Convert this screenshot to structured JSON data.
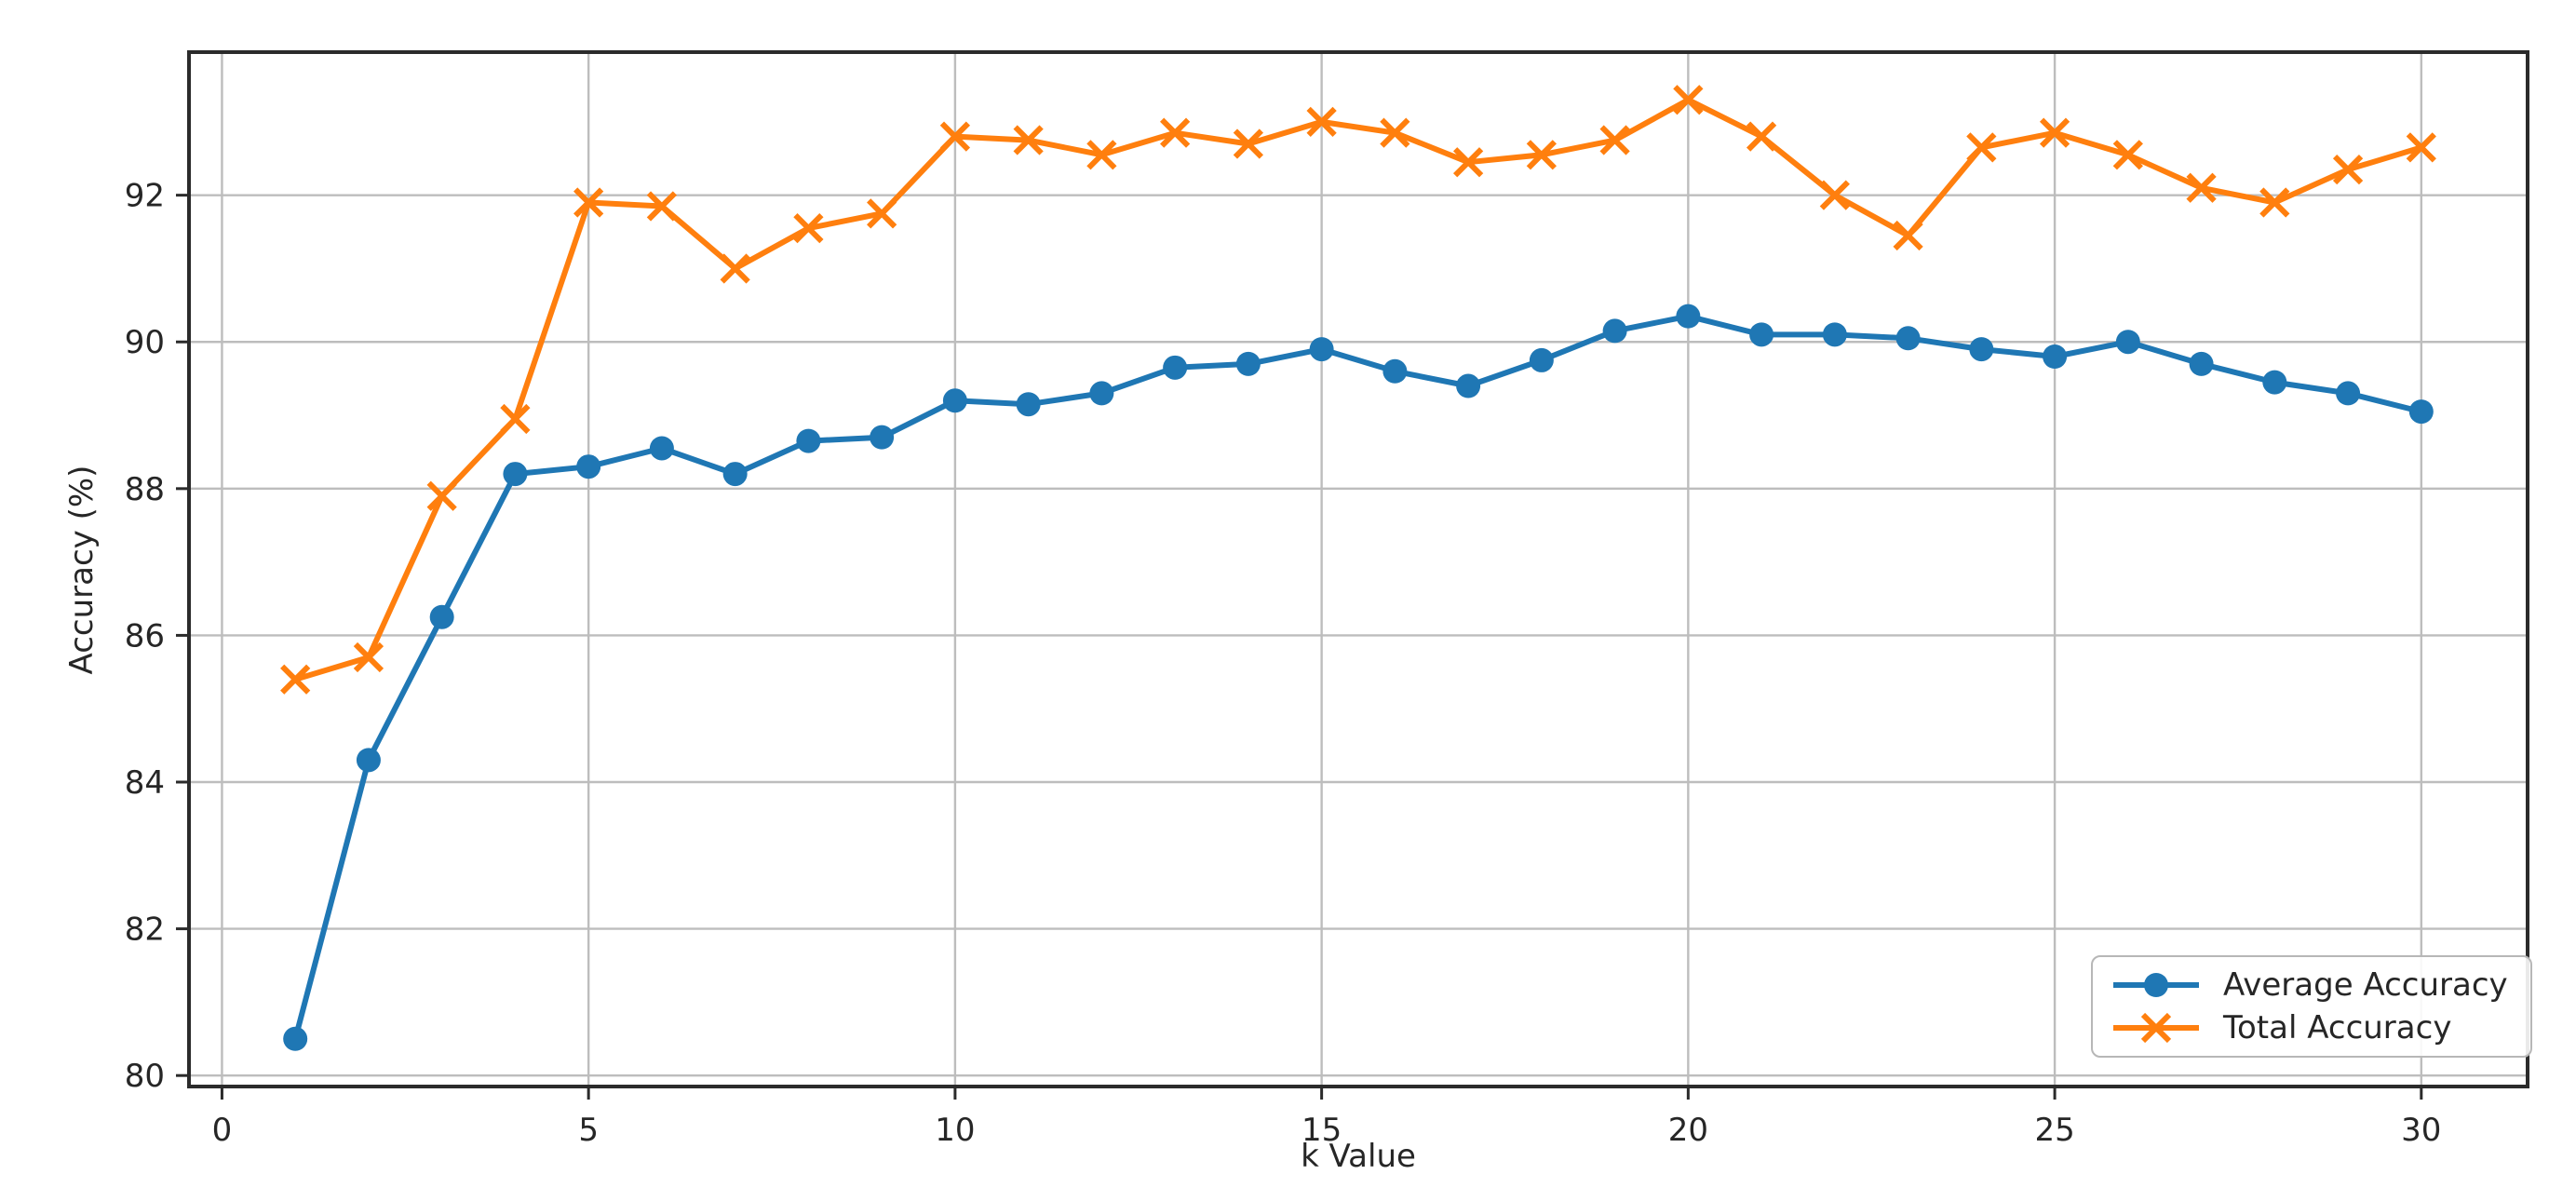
{
  "chart_data": {
    "type": "line",
    "title": "",
    "xlabel": "k Value",
    "ylabel": "Accuracy (%)",
    "x_ticks": [
      0,
      5,
      10,
      15,
      20,
      25,
      30
    ],
    "y_ticks": [
      80,
      82,
      84,
      86,
      88,
      90,
      92
    ],
    "xlim": [
      -0.45,
      31.45
    ],
    "ylim": [
      79.85,
      93.95
    ],
    "grid": true,
    "legend_position": "lower right",
    "x": [
      1,
      2,
      3,
      4,
      5,
      6,
      7,
      8,
      9,
      10,
      11,
      12,
      13,
      14,
      15,
      16,
      17,
      18,
      19,
      20,
      21,
      22,
      23,
      24,
      25,
      26,
      27,
      28,
      29,
      30
    ],
    "series": [
      {
        "name": "Average Accuracy",
        "color": "#1f77b4",
        "marker": "circle",
        "values": [
          80.5,
          84.3,
          86.25,
          88.2,
          88.3,
          88.55,
          88.2,
          88.65,
          88.7,
          89.2,
          89.15,
          89.3,
          89.65,
          89.7,
          89.9,
          89.6,
          89.4,
          89.75,
          90.15,
          90.35,
          90.1,
          90.1,
          90.05,
          89.9,
          89.8,
          90.0,
          89.7,
          89.45,
          89.3,
          89.05
        ]
      },
      {
        "name": "Total Accuracy",
        "color": "#ff7f0e",
        "marker": "x",
        "values": [
          85.4,
          85.7,
          87.9,
          88.95,
          91.9,
          91.85,
          91.0,
          91.55,
          91.75,
          92.8,
          92.75,
          92.55,
          92.85,
          92.7,
          93.0,
          92.85,
          92.45,
          92.55,
          92.75,
          93.3,
          92.8,
          92.0,
          91.45,
          92.65,
          92.85,
          92.55,
          92.1,
          91.9,
          92.35,
          92.65
        ]
      }
    ],
    "colors": {
      "grid": "#bdbdbd",
      "spine": "#2b2b2b",
      "tick_text": "#262626"
    }
  }
}
